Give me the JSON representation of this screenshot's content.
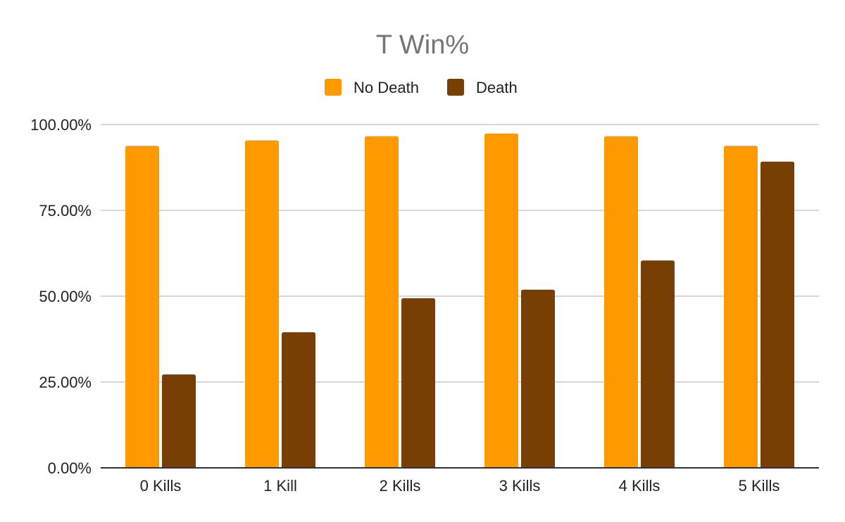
{
  "chart_data": {
    "type": "bar",
    "title": "T Win%",
    "categories": [
      "0 Kills",
      "1 Kill",
      "2 Kills",
      "3 Kills",
      "4 Kills",
      "5 Kills"
    ],
    "series": [
      {
        "name": "No Death",
        "color": "#ff9900",
        "values": [
          93.8,
          95.4,
          96.6,
          97.4,
          96.6,
          93.8
        ]
      },
      {
        "name": "Death",
        "color": "#783f04",
        "values": [
          27.2,
          39.5,
          49.4,
          51.9,
          60.4,
          89.2
        ]
      }
    ],
    "yticks": [
      "0.00%",
      "25.00%",
      "50.00%",
      "75.00%",
      "100.00%"
    ],
    "ylim": [
      0,
      100
    ],
    "xlabel": "",
    "ylabel": "",
    "grid": true,
    "legend_position": "top-center"
  }
}
